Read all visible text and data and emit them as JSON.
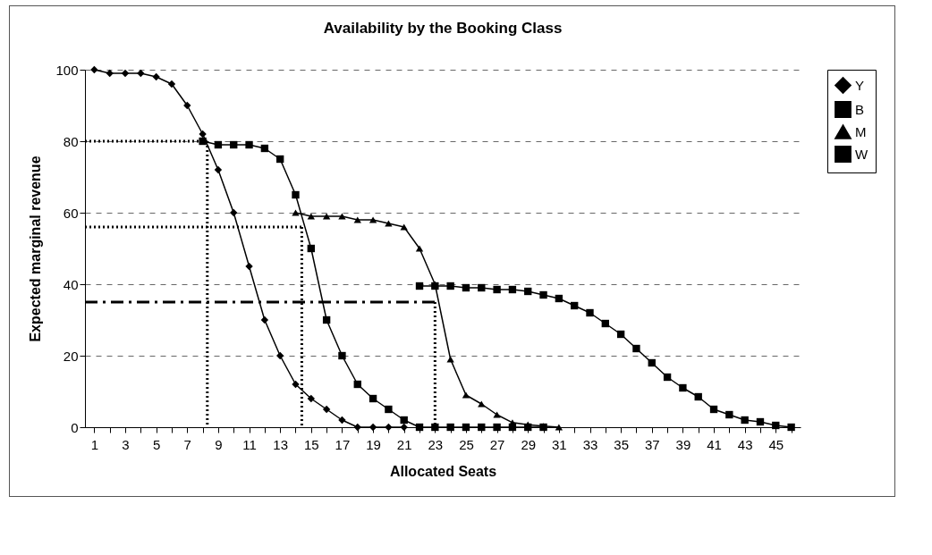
{
  "chart_data": {
    "type": "line",
    "title": "Availability by the Booking Class",
    "xlabel": "Allocated Seats",
    "ylabel": "Expected marginal revenue",
    "xlim": [
      0.4,
      46.6
    ],
    "xticks": [
      1,
      {
        "value": 2,
        "label": null
      },
      3,
      {
        "value": 4,
        "label": null
      },
      5,
      {
        "value": 6,
        "label": null
      },
      7,
      {
        "value": 8,
        "label": null
      },
      9,
      {
        "value": 10,
        "label": null
      },
      11,
      {
        "value": 12,
        "label": null
      },
      13,
      {
        "value": 14,
        "label": null
      },
      15,
      {
        "value": 16,
        "label": null
      },
      17,
      {
        "value": 18,
        "label": null
      },
      19,
      {
        "value": 20,
        "label": null
      },
      21,
      {
        "value": 22,
        "label": null
      },
      23,
      {
        "value": 24,
        "label": null
      },
      25,
      {
        "value": 26,
        "label": null
      },
      27,
      {
        "value": 28,
        "label": null
      },
      29,
      {
        "value": 30,
        "label": null
      },
      31,
      {
        "value": 32,
        "label": null
      },
      33,
      {
        "value": 34,
        "label": null
      },
      35,
      {
        "value": 36,
        "label": null
      },
      37,
      {
        "value": 38,
        "label": null
      },
      39,
      {
        "value": 40,
        "label": null
      },
      41,
      {
        "value": 42,
        "label": null
      },
      43,
      {
        "value": 44,
        "label": null
      },
      45,
      {
        "value": 46,
        "label": null
      }
    ],
    "ylim": [
      0,
      100
    ],
    "yticks": [
      0,
      20,
      40,
      60,
      80,
      100
    ],
    "grid": "y",
    "legend": "right",
    "series": [
      {
        "name": "Y",
        "color": "#000000",
        "marker": "diamond",
        "x": [
          1,
          2,
          3,
          4,
          5,
          6,
          7,
          8,
          9,
          10,
          11,
          12,
          13,
          14,
          15,
          16,
          17,
          18,
          19,
          20,
          21
        ],
        "values": [
          100,
          99,
          99,
          99,
          98,
          96,
          90,
          82,
          72,
          60,
          45,
          30,
          20,
          12,
          8,
          5,
          2,
          0,
          0,
          0,
          0
        ]
      },
      {
        "name": "B",
        "color": "#000000",
        "marker": "square",
        "x": [
          8,
          9,
          10,
          11,
          12,
          13,
          14,
          15,
          16,
          17,
          18,
          19,
          20,
          21,
          22,
          23,
          24,
          25,
          26,
          27,
          28,
          29,
          30
        ],
        "values": [
          80,
          79,
          79,
          79,
          78,
          75,
          65,
          50,
          30,
          20,
          12,
          8,
          5,
          2,
          0,
          0,
          0,
          0,
          0,
          0,
          0,
          0,
          0
        ]
      },
      {
        "name": "M",
        "color": "#000000",
        "marker": "triangle",
        "x": [
          14,
          15,
          16,
          17,
          18,
          19,
          20,
          21,
          22,
          23,
          24,
          25,
          26,
          27,
          28,
          29,
          30,
          31
        ],
        "values": [
          60,
          59,
          59,
          59,
          58,
          58,
          57,
          56,
          50,
          40,
          19,
          9,
          6.5,
          3.5,
          1.3,
          0.7,
          0.3,
          0
        ]
      },
      {
        "name": "W",
        "color": "#000000",
        "marker": "square",
        "x": [
          22,
          23,
          24,
          25,
          26,
          27,
          28,
          29,
          30,
          31,
          32,
          33,
          34,
          35,
          36,
          37,
          38,
          39,
          40,
          41,
          42,
          43,
          44,
          45,
          46
        ],
        "values": [
          39.5,
          39.5,
          39.5,
          39,
          39,
          38.5,
          38.5,
          38,
          37,
          36,
          34,
          32,
          29,
          26,
          22,
          18,
          14,
          11,
          8.5,
          5,
          3.5,
          2,
          1.5,
          0.5,
          0
        ]
      },
      {
        "color": "#000000",
        "line_style": "dotted",
        "x": [
          0.4,
          8.3
        ],
        "values": [
          80,
          80
        ]
      },
      {
        "color": "#000000",
        "line_style": "dotted",
        "x": [
          8.3,
          8.3
        ],
        "values": [
          80,
          0
        ]
      },
      {
        "color": "#000000",
        "line_style": "dotted",
        "x": [
          0.4,
          14.4
        ],
        "values": [
          56,
          56
        ]
      },
      {
        "color": "#000000",
        "line_style": "dotted",
        "x": [
          14.4,
          14.4
        ],
        "values": [
          56,
          0
        ]
      },
      {
        "color": "#000000",
        "line_style": "dashed",
        "x": [
          0.4,
          23
        ],
        "values": [
          35,
          35
        ]
      },
      {
        "color": "#000000",
        "line_style": "dotted",
        "x": [
          23,
          23
        ],
        "values": [
          35,
          0
        ]
      }
    ]
  }
}
